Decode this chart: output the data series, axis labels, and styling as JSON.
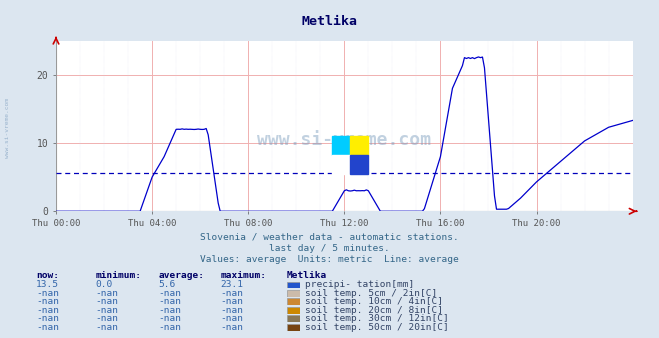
{
  "title": "Metlika",
  "subtitle1": "Slovenia / weather data - automatic stations.",
  "subtitle2": "last day / 5 minutes.",
  "subtitle3": "Values: average  Units: metric  Line: average",
  "bg_color": "#dce6f0",
  "plot_bg_color": "#ffffff",
  "grid_color_major": "#f0b0b0",
  "grid_color_minor": "#e8e8f8",
  "line_color": "#0000cc",
  "avg_line_color": "#0000bb",
  "avg_line_y": 5.6,
  "ylim": [
    0,
    25
  ],
  "yticks": [
    0,
    10,
    20
  ],
  "xtick_positions": [
    0,
    4,
    8,
    12,
    16,
    20
  ],
  "xtick_labels": [
    "Thu 00:00",
    "Thu 04:00",
    "Thu 08:00",
    "Thu 12:00",
    "Thu 16:00",
    "Thu 20:00"
  ],
  "watermark_color": "#7799bb",
  "logo_colors": [
    "#00ccff",
    "#ffee00",
    "#ffffff",
    "#2244cc"
  ],
  "legend_entries": [
    {
      "label": "precipi- tation[mm]",
      "color": "#2255cc"
    },
    {
      "label": "soil temp. 5cm / 2in[C]",
      "color": "#ccbbaa"
    },
    {
      "label": "soil temp. 10cm / 4in[C]",
      "color": "#cc8833"
    },
    {
      "label": "soil temp. 20cm / 8in[C]",
      "color": "#cc8800"
    },
    {
      "label": "soil temp. 30cm / 12in[C]",
      "color": "#887755"
    },
    {
      "label": "soil temp. 50cm / 20in[C]",
      "color": "#774411"
    }
  ],
  "table_headers": [
    "now:",
    "minimum:",
    "average:",
    "maximum:",
    "Metlika"
  ],
  "table_rows": [
    [
      "13.5",
      "0.0",
      "5.6",
      "23.1"
    ],
    [
      "-nan",
      "-nan",
      "-nan",
      "-nan"
    ],
    [
      "-nan",
      "-nan",
      "-nan",
      "-nan"
    ],
    [
      "-nan",
      "-nan",
      "-nan",
      "-nan"
    ],
    [
      "-nan",
      "-nan",
      "-nan",
      "-nan"
    ],
    [
      "-nan",
      "-nan",
      "-nan",
      "-nan"
    ]
  ]
}
